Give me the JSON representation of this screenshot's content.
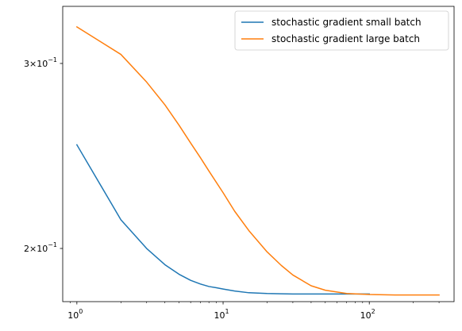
{
  "chart_data": {
    "type": "line",
    "title": "",
    "xlabel": "",
    "ylabel": "",
    "xscale": "log",
    "yscale": "log",
    "xlim": [
      0.8,
      380
    ],
    "ylim": [
      0.178,
      0.34
    ],
    "grid": false,
    "legend_position": "top-right",
    "x_tick_labels": [
      {
        "value": 1,
        "base": "10",
        "exp": "0"
      },
      {
        "value": 10,
        "base": "10",
        "exp": "1"
      },
      {
        "value": 100,
        "base": "10",
        "exp": "2"
      }
    ],
    "y_tick_labels": [
      {
        "value": 0.3,
        "mantissa": "3",
        "base": "10",
        "exp": "−1"
      },
      {
        "value": 0.2,
        "mantissa": "2",
        "base": "10",
        "exp": "−1"
      }
    ],
    "series": [
      {
        "name": "stochastic gradient small batch",
        "color": "#1f77b4",
        "x": [
          1,
          2,
          3,
          4,
          5,
          6,
          7,
          8,
          9,
          10,
          12,
          15,
          20,
          25,
          30,
          40,
          50,
          70,
          100
        ],
        "y": [
          0.251,
          0.213,
          0.2,
          0.193,
          0.189,
          0.1865,
          0.185,
          0.184,
          0.1835,
          0.183,
          0.1822,
          0.1815,
          0.1812,
          0.1811,
          0.181,
          0.181,
          0.181,
          0.181,
          0.181
        ]
      },
      {
        "name": "stochastic gradient large batch",
        "color": "#ff7f0e",
        "x": [
          1,
          2,
          3,
          4,
          5,
          6,
          7,
          8,
          10,
          12,
          15,
          20,
          25,
          30,
          40,
          50,
          70,
          100,
          150,
          200,
          300
        ],
        "y": [
          0.325,
          0.306,
          0.288,
          0.274,
          0.262,
          0.252,
          0.244,
          0.237,
          0.226,
          0.217,
          0.208,
          0.1985,
          0.1927,
          0.1887,
          0.1843,
          0.1825,
          0.1812,
          0.1808,
          0.1806,
          0.1806,
          0.1806
        ]
      }
    ]
  }
}
